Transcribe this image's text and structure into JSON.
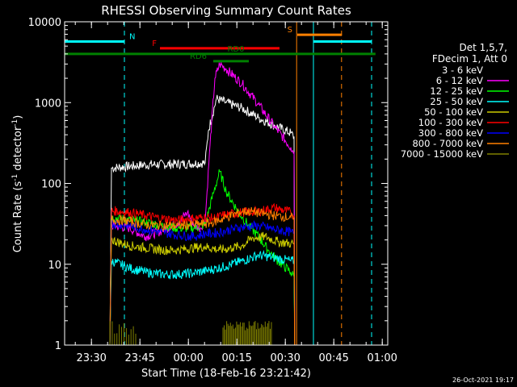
{
  "chart_data": {
    "type": "line",
    "title": "RHESSI Observing Summary Count Rates",
    "xlabel": "Start Time (18-Feb-16 23:21:42)",
    "ylabel_prefix": "Count Rate (s",
    "ylabel_exp1": "-1",
    "ylabel_mid": " detector",
    "ylabel_exp2": "-1",
    "ylabel_suffix": ")",
    "footer": "26-Oct-2021 19:17",
    "x_unit": "minutes since 23:21:42",
    "xlim": [
      0,
      100
    ],
    "ylim": [
      1,
      10000
    ],
    "yscale": "log",
    "xticks": [
      {
        "v": 8.3,
        "label": "23:30"
      },
      {
        "v": 23.3,
        "label": "23:45"
      },
      {
        "v": 38.3,
        "label": "00:00"
      },
      {
        "v": 53.3,
        "label": "00:15"
      },
      {
        "v": 68.3,
        "label": "00:30"
      },
      {
        "v": 83.3,
        "label": "00:45"
      },
      {
        "v": 98.3,
        "label": "01:00"
      }
    ],
    "yticks": [
      {
        "v": 1,
        "label": "1"
      },
      {
        "v": 10,
        "label": "10"
      },
      {
        "v": 100,
        "label": "100"
      },
      {
        "v": 1000,
        "label": "1000"
      },
      {
        "v": 10000,
        "label": "10000"
      }
    ],
    "legend": {
      "header1": "Det 1,5,7,",
      "header2": "FDecim 1, Att 0",
      "placement": "right"
    },
    "series": [
      {
        "name": "3 - 6 keV",
        "color": "#000000",
        "x": [
          14,
          14.5,
          25,
          38,
          43.5,
          44.5,
          47,
          50,
          55,
          60,
          65,
          70,
          71,
          71.2
        ],
        "y": [
          1,
          155,
          170,
          175,
          180,
          450,
          1120,
          1000,
          850,
          650,
          520,
          420,
          380,
          1
        ]
      },
      {
        "name": "6 - 12 keV",
        "color": "#ff00ff",
        "x": [
          14,
          14.5,
          20,
          25,
          30,
          35,
          38,
          40,
          42,
          43.5,
          45,
          46.5,
          48,
          50,
          55,
          60,
          65,
          70,
          71,
          71.2
        ],
        "y": [
          1,
          30,
          28,
          22,
          26,
          32,
          44,
          30,
          28,
          35,
          300,
          2000,
          3000,
          2600,
          1700,
          950,
          500,
          280,
          240,
          1
        ]
      },
      {
        "name": "12 - 25 keV",
        "color": "#00ff00",
        "x": [
          14,
          14.5,
          25,
          35,
          40,
          43.5,
          46,
          48,
          50,
          53,
          55,
          57,
          60,
          63,
          66,
          70,
          71,
          71.2
        ],
        "y": [
          1,
          38,
          33,
          28,
          28,
          31,
          75,
          140,
          80,
          50,
          38,
          30,
          22,
          15,
          11,
          8,
          7,
          1
        ]
      },
      {
        "name": "25 - 50 keV",
        "color": "#00ffff",
        "x": [
          14,
          14.5,
          20,
          25,
          30,
          35,
          40,
          45,
          50,
          55,
          60,
          65,
          70,
          71,
          71.2
        ],
        "y": [
          1,
          11,
          9,
          8,
          7.5,
          7.5,
          7.8,
          8.5,
          9.5,
          11,
          13,
          12,
          11,
          11,
          1
        ]
      },
      {
        "name": "50 - 100 keV",
        "color": "#cccc00",
        "x": [
          14,
          14.5,
          20,
          25,
          30,
          35,
          40,
          43.5,
          48,
          52,
          55,
          58,
          62,
          66,
          70,
          71,
          71.2
        ],
        "y": [
          1,
          20,
          17,
          16,
          15,
          15,
          16,
          16.5,
          15,
          16,
          17,
          21,
          22,
          19,
          18,
          18,
          1
        ]
      },
      {
        "name": "100 - 300 keV",
        "color": "#ff0000",
        "x": [
          14,
          14.5,
          20,
          25,
          30,
          35,
          40,
          43.5,
          46,
          50,
          55,
          60,
          65,
          70,
          71,
          71.2
        ],
        "y": [
          1,
          46,
          44,
          40,
          37,
          35,
          37,
          38,
          37,
          41,
          44,
          45,
          50,
          44,
          40,
          1
        ]
      },
      {
        "name": "300 - 800 keV",
        "color": "#0000ff",
        "x": [
          14,
          14.5,
          20,
          25,
          30,
          35,
          40,
          43.5,
          46,
          50,
          55,
          60,
          65,
          70,
          71
        ],
        "y": [
          1,
          32,
          30,
          27,
          25,
          23,
          22,
          24,
          24,
          26,
          29,
          30,
          27,
          25,
          24
        ]
      },
      {
        "name": "800 - 7000 keV",
        "color": "#ff8000",
        "x": [
          14,
          14.5,
          20,
          25,
          30,
          35,
          40,
          45,
          50,
          55,
          58,
          60,
          65,
          70,
          71,
          71.2
        ],
        "y": [
          1,
          36,
          34,
          31,
          30,
          30,
          31,
          32,
          38,
          45,
          45,
          43,
          40,
          38,
          37,
          1
        ]
      },
      {
        "name": "7000 - 15000 keV",
        "color": "#808000",
        "x": [
          14,
          15,
          16,
          17,
          18,
          19,
          20,
          21,
          22
        ],
        "y": [
          2,
          1.5,
          2,
          1.5,
          2,
          1.5,
          2,
          1.4,
          1.8
        ]
      }
    ],
    "spikes": [
      {
        "series": "7000 - 15000 keV",
        "xmin": 14,
        "xmax": 22,
        "n": 12,
        "ymin": 1.3,
        "ymax": 2.0
      },
      {
        "series": "7000 - 15000 keV",
        "xmin": 49,
        "xmax": 64,
        "n": 40,
        "ymin": 1.5,
        "ymax": 2.0
      }
    ],
    "vlines": [
      {
        "x": 0,
        "color": "#00ffff",
        "dash": false
      },
      {
        "x": 18.5,
        "color": "#00ffff",
        "dash": true
      },
      {
        "x": 71.8,
        "color": "#ff8000",
        "dash": false
      },
      {
        "x": 77,
        "color": "#00ffff",
        "dash": false
      },
      {
        "x": 85.7,
        "color": "#ff8000",
        "dash": true
      },
      {
        "x": 95,
        "color": "#00ffff",
        "dash": true
      }
    ],
    "flag_bars": [
      {
        "label": "N",
        "color": "#00ffff",
        "y": 5700,
        "segments": [
          [
            0,
            18.5
          ],
          [
            77,
            95
          ]
        ],
        "label_x": 20,
        "label_side": "right"
      },
      {
        "label": "F",
        "color": "#ff0000",
        "y": 4700,
        "segments": [
          [
            29.5,
            66.5
          ]
        ],
        "label_x": 28.5,
        "label_side": "left"
      },
      {
        "label": "S",
        "color": "#ff8000",
        "y": 6900,
        "segments": [
          [
            72,
            85.8
          ]
        ],
        "label_x": 70.5,
        "label_side": "left"
      },
      {
        "label": "RD0",
        "color": "#008000",
        "y": 4000,
        "segments": [
          [
            0,
            96.2
          ]
        ],
        "label_x": 53,
        "label_side": "center"
      },
      {
        "label": "RD6",
        "color": "#008000",
        "y": 3250,
        "segments": [
          [
            46,
            57
          ]
        ],
        "label_x": 44,
        "label_side": "left"
      }
    ],
    "grid": false,
    "axis_color": "#ffffff",
    "background": "#000000"
  }
}
